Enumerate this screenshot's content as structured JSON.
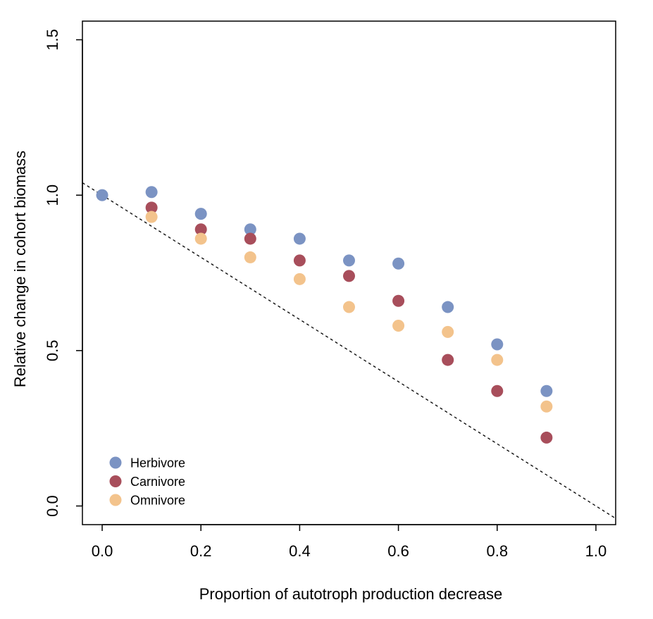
{
  "chart_data": {
    "type": "scatter",
    "xlabel": "Proportion of autotroph production decrease",
    "ylabel": "Relative change in cohort biomass",
    "xlim": [
      -0.04,
      1.04
    ],
    "ylim": [
      -0.06,
      1.56
    ],
    "xticks": [
      0.0,
      0.2,
      0.4,
      0.6,
      0.8,
      1.0
    ],
    "xtick_labels": [
      "0.0",
      "0.2",
      "0.4",
      "0.6",
      "0.8",
      "1.0"
    ],
    "yticks": [
      0.0,
      0.5,
      1.0,
      1.5
    ],
    "ytick_labels": [
      "0.0",
      "0.5",
      "1.0",
      "1.5"
    ],
    "grid": false,
    "legend_position": "bottom-left",
    "reference_line": {
      "style": "dashed",
      "from": [
        -0.04,
        1.04
      ],
      "to": [
        1.04,
        -0.04
      ]
    },
    "series": [
      {
        "name": "Herbivore",
        "color": "#7b93c3",
        "x": [
          0.0,
          0.1,
          0.2,
          0.3,
          0.4,
          0.5,
          0.6,
          0.7,
          0.8,
          0.9
        ],
        "y": [
          1.0,
          1.01,
          0.94,
          0.89,
          0.86,
          0.79,
          0.78,
          0.64,
          0.52,
          0.37
        ]
      },
      {
        "name": "Carnivore",
        "color": "#a84e5b",
        "x": [
          0.1,
          0.2,
          0.3,
          0.4,
          0.5,
          0.6,
          0.7,
          0.8,
          0.9
        ],
        "y": [
          0.96,
          0.89,
          0.86,
          0.79,
          0.74,
          0.66,
          0.47,
          0.37,
          0.22
        ]
      },
      {
        "name": "Omnivore",
        "color": "#f3c38c",
        "x": [
          0.1,
          0.2,
          0.3,
          0.4,
          0.5,
          0.6,
          0.7,
          0.8,
          0.9
        ],
        "y": [
          0.93,
          0.86,
          0.8,
          0.73,
          0.64,
          0.58,
          0.56,
          0.47,
          0.32
        ]
      }
    ]
  }
}
